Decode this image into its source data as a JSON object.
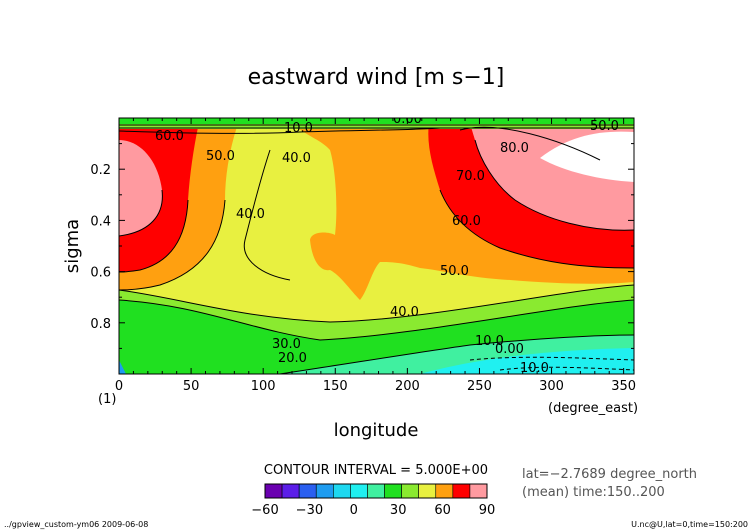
{
  "chart_data": {
    "type": "heatmap",
    "title": "eastward wind [m s−1]",
    "xlabel": "longitude",
    "ylabel": "sigma",
    "x_unit": "(degree_east)",
    "panel_label": "(1)",
    "xlim": [
      0,
      357.1875
    ],
    "ylim": [
      1.0,
      0.0
    ],
    "x_ticks": [
      "0",
      "50",
      "100",
      "150",
      "200",
      "250",
      "300",
      "350"
    ],
    "y_ticks": [
      "0.2",
      "0.4",
      "0.6",
      "0.8"
    ],
    "contour_interval": "CONTOUR INTERVAL = 5.000E+00",
    "colorbar_ticks": [
      "−60",
      "−30",
      "0",
      "30",
      "60",
      "90"
    ],
    "colorbar_levels": [
      -60,
      -50,
      -40,
      -30,
      -20,
      -10,
      0,
      10,
      20,
      30,
      40,
      50,
      60,
      70,
      80,
      90
    ],
    "colorbar_colors": [
      "#6a00b0",
      "#5b1ee8",
      "#2a5ff0",
      "#1e9cf0",
      "#1ed8f0",
      "#20f0f0",
      "#40f0a0",
      "#20e020",
      "#8aea30",
      "#e8f040",
      "#ffa010",
      "#ff0000",
      "#ff9aa0"
    ],
    "meta": {
      "lat": "lat=−2.7689 degree_north",
      "mean": "(mean) time:150..200"
    },
    "contour_labels": [
      "0.00",
      "10.0",
      "20.0",
      "30.0",
      "40.0",
      "50.0",
      "60.0",
      "70.0",
      "80.0"
    ],
    "regions_note": "Jet cores ~80 m/s at lon 290-350, sigma 0.15-0.25; ~60 m/s at lon 0-30, sigma 0.1-0.45; values ~40 m/s mid troposphere; near-surface < 10 m/s at lon 220-357, sigma 0.9-1.0"
  },
  "footer": {
    "left": "../gpview_custom-ym06  2009-06-08",
    "right": "U.nc@U,lat=0,time=150:200"
  }
}
